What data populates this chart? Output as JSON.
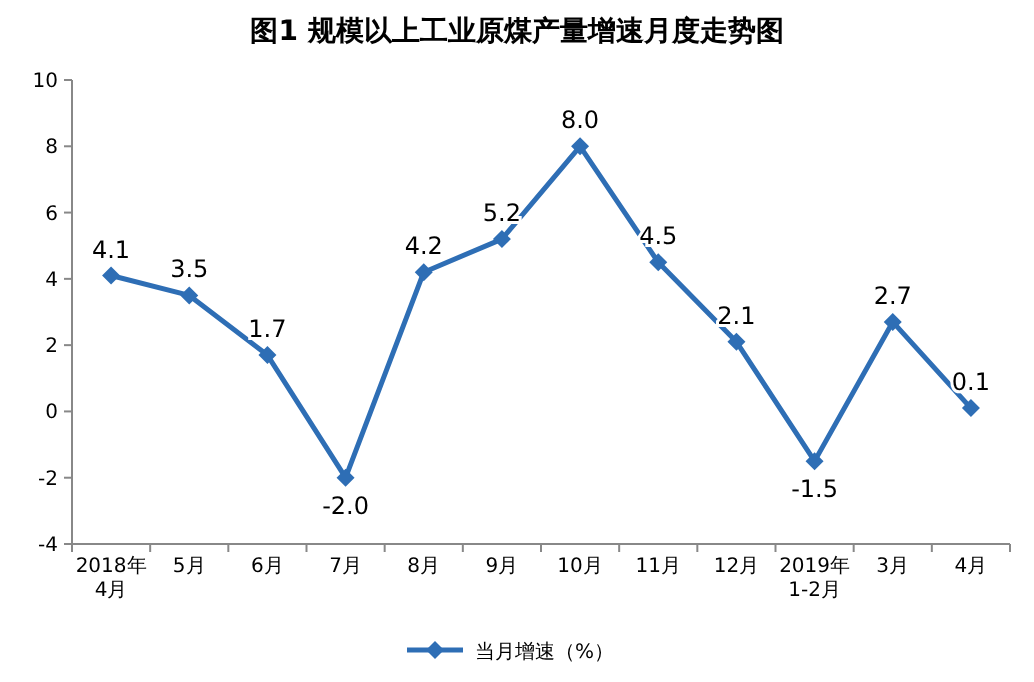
{
  "chart_data": {
    "type": "line",
    "title": "图1  规模以上工业原煤产量增速月度走势图",
    "categories": [
      "2018年4月",
      "5月",
      "6月",
      "7月",
      "8月",
      "9月",
      "10月",
      "11月",
      "12月",
      "2019年1-2月",
      "3月",
      "4月"
    ],
    "series": [
      {
        "name": "当月增速（%）",
        "color": "#2e6eb5",
        "values": [
          4.1,
          3.5,
          1.7,
          -2.0,
          4.2,
          5.2,
          8.0,
          4.5,
          2.1,
          -1.5,
          2.7,
          0.1
        ],
        "value_labels": [
          "4.1",
          "3.5",
          "1.7",
          "-2.0",
          "4.2",
          "5.2",
          "8.0",
          "4.5",
          "2.1",
          "-1.5",
          "2.7",
          "0.1"
        ]
      }
    ],
    "ylim": [
      -4,
      10
    ],
    "yticks": [
      -4,
      -2,
      0,
      2,
      4,
      6,
      8,
      10
    ],
    "marker": "diamond",
    "legend": "bottom",
    "grid": false
  }
}
